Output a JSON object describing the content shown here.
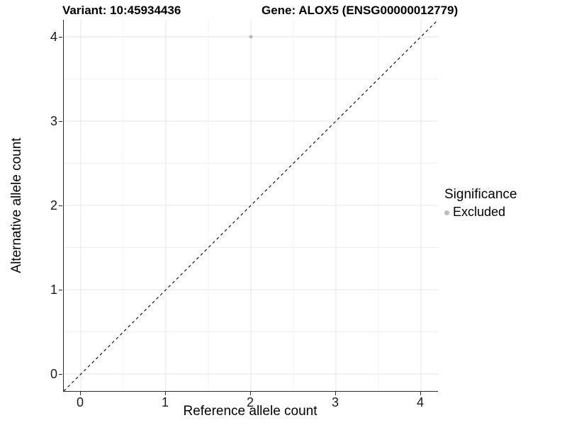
{
  "header": {
    "variant_title": "Variant: 10:45934436",
    "gene_title": "Gene: ALOX5 (ENSG00000012779)"
  },
  "chart_data": {
    "type": "scatter",
    "title": "Variant: 10:45934436 / Gene: ALOX5 (ENSG00000012779)",
    "xlabel": "Reference allele count",
    "ylabel": "Alternative allele count",
    "xlim": [
      -0.2,
      4.2
    ],
    "ylim": [
      -0.2,
      4.2
    ],
    "x_ticks": [
      0,
      1,
      2,
      3,
      4
    ],
    "y_ticks": [
      0,
      1,
      2,
      3,
      4
    ],
    "x_minor_ticks": [
      0.5,
      1.5,
      2.5,
      3.5
    ],
    "y_minor_ticks": [
      0.5,
      1.5,
      2.5,
      3.5
    ],
    "grid": "major+minor",
    "series": [
      {
        "name": "Excluded",
        "color": "#bdbdbd",
        "point_radius": 2.6,
        "points": [
          {
            "x": 2,
            "y": 4
          }
        ]
      }
    ],
    "reference_line": {
      "equation": "y = x",
      "style": "dashed",
      "color": "#111111"
    },
    "legend": {
      "title": "Significance",
      "position": "right",
      "entries": [
        {
          "label": "Excluded",
          "color": "#bdbdbd"
        }
      ]
    }
  },
  "colors": {
    "background": "#ffffff",
    "grid_major": "#e4e4e4",
    "grid_minor": "#f0f0f0",
    "axis_line": "#2a2a2a",
    "tick_text": "#1a1a1a",
    "point": "#bdbdbd"
  }
}
